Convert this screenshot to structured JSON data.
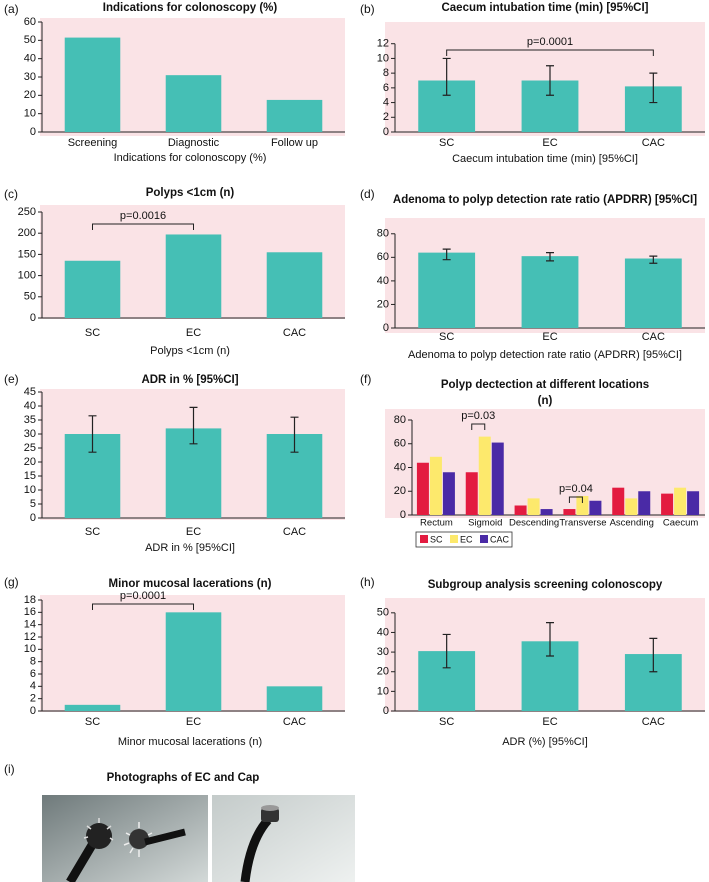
{
  "chart_data": [
    {
      "type": "bar",
      "label": "(a)",
      "title": "Indications for colonoscopy (%)",
      "x_label": "Indications for colonoscopy (%)",
      "categories": [
        "Screening",
        "Diagnostic",
        "Follow up"
      ],
      "values": [
        51.5,
        31,
        17.5
      ],
      "color": "#45bfb5",
      "ylim": [
        0,
        60
      ],
      "yticks": [
        0,
        10,
        20,
        30,
        40,
        50,
        60
      ]
    },
    {
      "type": "bar",
      "label": "(b)",
      "title": "Caecum intubation time (min) [95%CI]",
      "x_label": "Caecum intubation time (min) [95%CI]",
      "categories": [
        "SC",
        "EC",
        "CAC"
      ],
      "values": [
        7,
        7,
        6.2
      ],
      "ci_low": [
        5,
        5,
        4
      ],
      "ci_high": [
        10,
        9,
        8
      ],
      "color": "#45bfb5",
      "ylim": [
        0,
        14
      ],
      "yticks": [
        0,
        2,
        4,
        6,
        8,
        10,
        12
      ],
      "annotations": [
        "p=0.0001"
      ]
    },
    {
      "type": "bar",
      "label": "(c)",
      "title": "Polyps <1cm (n)",
      "x_label": "Polyps <1cm (n)",
      "categories": [
        "SC",
        "EC",
        "CAC"
      ],
      "values": [
        135,
        197,
        155
      ],
      "color": "#45bfb5",
      "ylim": [
        0,
        250
      ],
      "yticks": [
        0,
        50,
        100,
        150,
        200,
        250
      ],
      "annotations": [
        "p=0.0016"
      ]
    },
    {
      "type": "bar",
      "label": "(d)",
      "title": "Adenoma to polyp detection rate ratio (APDRR) [95%CI]",
      "x_label": "Adenoma to polyp detection rate ratio (APDRR) [95%CI]",
      "categories": [
        "SC",
        "EC",
        "CAC"
      ],
      "values": [
        64,
        61,
        59
      ],
      "ci_low": [
        58,
        57,
        55
      ],
      "ci_high": [
        67,
        64,
        61
      ],
      "color": "#45bfb5",
      "ylim": [
        0,
        90
      ],
      "yticks": [
        0,
        20,
        40,
        60,
        80
      ]
    },
    {
      "type": "bar",
      "label": "(e)",
      "title": "ADR in % [95%CI]",
      "x_label": "ADR in % [95%CI]",
      "categories": [
        "SC",
        "EC",
        "CAC"
      ],
      "values": [
        30,
        32,
        30
      ],
      "ci_low": [
        23.5,
        26.5,
        23.5
      ],
      "ci_high": [
        36.5,
        39.5,
        36
      ],
      "color": "#45bfb5",
      "ylim": [
        0,
        45
      ],
      "yticks": [
        0,
        5,
        10,
        15,
        20,
        25,
        30,
        35,
        40,
        45
      ]
    },
    {
      "type": "bar",
      "label": "(f)",
      "title": [
        "Polyp dectection at different locations",
        "(n)"
      ],
      "categories": [
        "Rectum",
        "Sigmoid",
        "Descending",
        "Transverse",
        "Ascending",
        "Caecum"
      ],
      "series": [
        {
          "name": "SC",
          "color": "#e31b40",
          "values": [
            44,
            36,
            8,
            5,
            23,
            18
          ]
        },
        {
          "name": "EC",
          "color": "#fde96c",
          "values": [
            49,
            66,
            14,
            16,
            14,
            23
          ]
        },
        {
          "name": "CAC",
          "color": "#4a2aa6",
          "values": [
            36,
            61,
            5,
            12,
            20,
            20
          ]
        }
      ],
      "ylim": [
        0,
        80
      ],
      "yticks": [
        0,
        20,
        40,
        60,
        80
      ],
      "legend": "bottom-left",
      "annotations": [
        "p=0.03",
        "p=0.04"
      ]
    },
    {
      "type": "bar",
      "label": "(g)",
      "title": "Minor mucosal lacerations (n)",
      "x_label": "Minor mucosal lacerations (n)",
      "categories": [
        "SC",
        "EC",
        "CAC"
      ],
      "values": [
        1,
        16,
        4
      ],
      "color": "#45bfb5",
      "ylim": [
        0,
        18
      ],
      "yticks": [
        0,
        2,
        4,
        6,
        8,
        10,
        12,
        14,
        16,
        18
      ],
      "annotations": [
        "p=0.0001"
      ]
    },
    {
      "type": "bar",
      "label": "(h)",
      "title": "Subgroup analysis screening colonoscopy",
      "x_label": "ADR (%) [95%CI]",
      "categories": [
        "SC",
        "EC",
        "CAC"
      ],
      "values": [
        30.5,
        35.5,
        29
      ],
      "ci_low": [
        22,
        28,
        20
      ],
      "ci_high": [
        39,
        45,
        37
      ],
      "color": "#45bfb5",
      "ylim": [
        0,
        55
      ],
      "yticks": [
        0,
        10,
        20,
        30,
        40,
        50
      ]
    }
  ],
  "photo_panel": {
    "label": "(i)",
    "title": "Photographs of EC and Cap"
  }
}
